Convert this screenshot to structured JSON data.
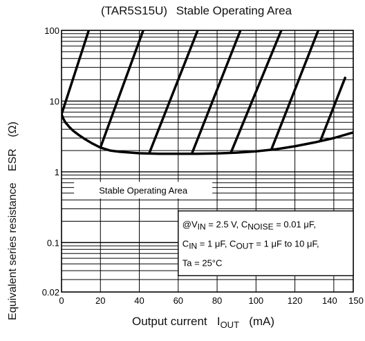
{
  "chart_data": {
    "type": "line",
    "title": [
      "(TAR5S15U)",
      "Stable Operating Area"
    ],
    "xlabel": [
      "Output current",
      "I",
      "OUT",
      "(mA)"
    ],
    "ylabel": [
      "Equivalent series resistance",
      "ESR",
      "(Ω)"
    ],
    "xlim": [
      0,
      150
    ],
    "ylim": [
      0.02,
      100
    ],
    "yscale": "log",
    "grid": true,
    "x_ticks": [
      "0",
      "20",
      "40",
      "60",
      "80",
      "100",
      "120",
      "140",
      "150"
    ],
    "y_ticks": [
      "100",
      "10",
      "1",
      "0.1",
      "0.02"
    ],
    "series": [
      {
        "x": [
          0,
          1,
          2,
          4,
          6,
          9,
          12,
          16,
          20,
          25,
          30,
          40,
          50,
          60,
          70,
          80,
          90,
          100,
          110,
          120,
          130,
          140,
          150
        ],
        "values": [
          6.5,
          5.6,
          5.0,
          4.3,
          3.8,
          3.3,
          2.9,
          2.5,
          2.2,
          2.0,
          1.92,
          1.83,
          1.8,
          1.8,
          1.8,
          1.82,
          1.87,
          1.95,
          2.08,
          2.3,
          2.6,
          3.0,
          3.6
        ]
      }
    ],
    "stable_area_hatch": [
      {
        "x1": 0,
        "y1": 6.5,
        "x2": 14,
        "y2": 100
      },
      {
        "x1": 20,
        "y1": 2.2,
        "x2": 42,
        "y2": 100
      },
      {
        "x1": 45,
        "y1": 1.8,
        "x2": 70,
        "y2": 100
      },
      {
        "x1": 67,
        "y1": 1.8,
        "x2": 92,
        "y2": 100
      },
      {
        "x1": 87,
        "y1": 1.84,
        "x2": 113,
        "y2": 100
      },
      {
        "x1": 108,
        "y1": 2.1,
        "x2": 132,
        "y2": 100
      },
      {
        "x1": 133,
        "y1": 2.7,
        "x2": 146,
        "y2": 22
      }
    ],
    "annotations": {
      "area_label": "Stable Operating Area",
      "conditions": [
        [
          "@V",
          "IN",
          " = 2.5 V, C",
          "NOISE",
          " = 0.01 μF,"
        ],
        [
          "C",
          "IN",
          " = 1 μF, C",
          "OUT",
          " = 1 μF to 10 μF,"
        ],
        [
          "Ta = 25°C"
        ]
      ]
    }
  }
}
